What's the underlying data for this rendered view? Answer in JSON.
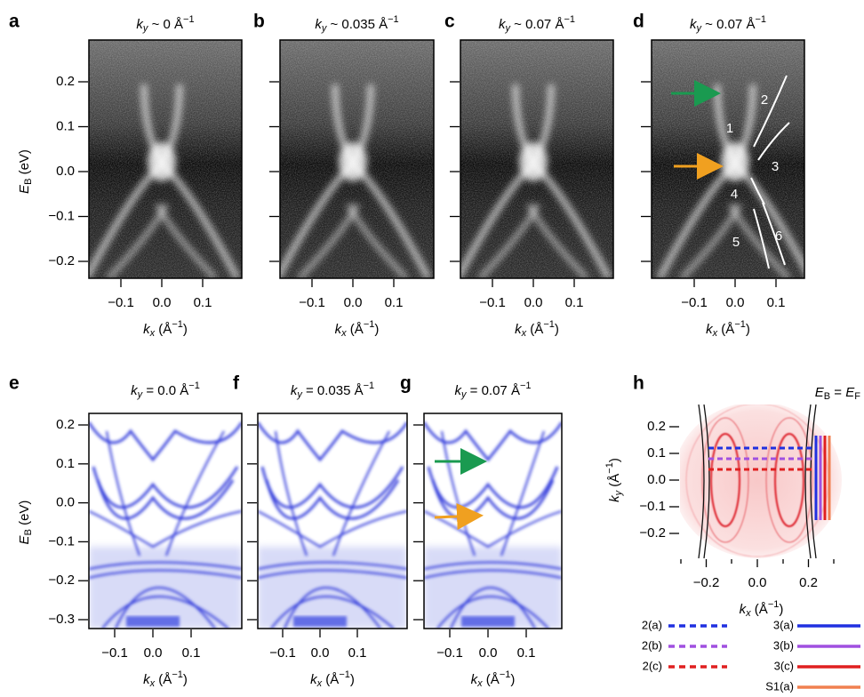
{
  "panels": [
    {
      "letter": "a",
      "title": [
        "k",
        "y",
        " ~ 0 Å",
        "−1"
      ],
      "xticks": [
        "−0.1",
        "0.0",
        "0.1"
      ],
      "yticks": [
        "0.2",
        "0.1",
        "0.0",
        "−0.1",
        "−0.2"
      ],
      "xlabel": [
        "k",
        "x",
        " (Å",
        "−1",
        ")"
      ],
      "ylabel": [
        "E",
        "B",
        " (eV)"
      ]
    },
    {
      "letter": "b",
      "title": [
        "k",
        "y",
        " ~ 0.035 Å",
        "−1"
      ],
      "xticks": [
        "−0.1",
        "0.0",
        "0.1"
      ],
      "xlabel": [
        "k",
        "x",
        " (Å",
        "−1",
        ")"
      ]
    },
    {
      "letter": "c",
      "title": [
        "k",
        "y",
        " ~ 0.07 Å",
        "−1"
      ],
      "xticks": [
        "−0.1",
        "0.0",
        "0.1"
      ],
      "xlabel": [
        "k",
        "x",
        " (Å",
        "−1",
        ")"
      ]
    },
    {
      "letter": "d",
      "title": [
        "k",
        "y",
        " ~ 0.07 Å",
        "−1"
      ],
      "xticks": [
        "−0.1",
        "0.0",
        "0.1"
      ],
      "xlabel": [
        "k",
        "x",
        " (Å",
        "−1",
        ")"
      ],
      "annotations": [
        "1",
        "2",
        "3",
        "4",
        "5",
        "6"
      ]
    },
    {
      "letter": "e",
      "title": [
        "k",
        "y",
        " = 0.0 Å",
        "−1"
      ],
      "xticks": [
        "−0.1",
        "0.0",
        "0.1"
      ],
      "yticks": [
        "0.2",
        "0.1",
        "0.0",
        "−0.1",
        "−0.2",
        "−0.3"
      ],
      "xlabel": [
        "k",
        "x",
        " (Å",
        "−1",
        ")"
      ],
      "ylabel": [
        "E",
        "B",
        " (eV)"
      ]
    },
    {
      "letter": "f",
      "title": [
        "k",
        "y",
        " = 0.035 Å",
        "−1"
      ],
      "xticks": [
        "−0.1",
        "0.0",
        "0.1"
      ],
      "xlabel": [
        "k",
        "x",
        " (Å",
        "−1",
        ")"
      ]
    },
    {
      "letter": "g",
      "title": [
        "k",
        "y",
        " = 0.07 Å",
        "−1"
      ],
      "xticks": [
        "−0.1",
        "0.0",
        "0.1"
      ],
      "xlabel": [
        "k",
        "x",
        " (Å",
        "−1",
        ")"
      ]
    },
    {
      "letter": "h",
      "title": [
        "E",
        "B",
        " = ",
        "E",
        "F"
      ],
      "xticks": [
        "−0.2",
        "0.0",
        "0.2"
      ],
      "yticks": [
        "0.2",
        "0.1",
        "0.0",
        "−0.1",
        "−0.2"
      ],
      "xlabel": [
        "k",
        "x",
        " (Å",
        "−1",
        ")"
      ],
      "ylabel": [
        "k",
        "y",
        " (Å",
        "−1",
        ")"
      ],
      "legend": [
        "2(a)",
        "2(b)",
        "2(c)",
        "3(a)",
        "3(b)",
        "3(c)",
        "S1(a)"
      ]
    }
  ]
}
